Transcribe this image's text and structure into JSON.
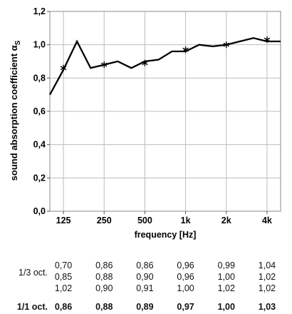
{
  "chart_data": {
    "type": "line",
    "ylabel": "sound absorption coefficient α",
    "ylabel_subscript": "S",
    "xlabel": "frequency [Hz]",
    "x_tick_labels": [
      "125",
      "250",
      "500",
      "1k",
      "2k",
      "4k"
    ],
    "y_tick_labels": [
      "0,0",
      "0,2",
      "0,4",
      "0,6",
      "0,8",
      "1,0",
      "1,2"
    ],
    "ylim": [
      0,
      1.2
    ],
    "grid": true,
    "x_third_octave": [
      "100",
      "125",
      "160",
      "200",
      "250",
      "315",
      "400",
      "500",
      "630",
      "800",
      "1k",
      "1.25k",
      "1.6k",
      "2k",
      "2.5k",
      "3.15k",
      "4k",
      "5k"
    ],
    "series": [
      {
        "values": [
          0.7,
          0.85,
          1.02,
          0.86,
          0.88,
          0.9,
          0.86,
          0.9,
          0.91,
          0.96,
          0.96,
          1.0,
          0.99,
          1.0,
          1.02,
          1.04,
          1.02,
          1.02
        ],
        "markers": [
          {
            "x": "125",
            "y": 0.86
          },
          {
            "x": "250",
            "y": 0.88
          },
          {
            "x": "500",
            "y": 0.89
          },
          {
            "x": "1k",
            "y": 0.97
          },
          {
            "x": "2k",
            "y": 1.0
          },
          {
            "x": "4k",
            "y": 1.03
          }
        ]
      }
    ]
  },
  "table": {
    "third_label": "1/3 oct.",
    "octave_label": "1/1 oct.",
    "third_values": [
      [
        "0,70",
        "0,85",
        "1,02"
      ],
      [
        "0,86",
        "0,88",
        "0,90"
      ],
      [
        "0,86",
        "0,90",
        "0,91"
      ],
      [
        "0,96",
        "0,96",
        "1,00"
      ],
      [
        "0,99",
        "1,00",
        "1,02"
      ],
      [
        "1,04",
        "1,02",
        "1,02"
      ]
    ],
    "octave_values": [
      "0,86",
      "0,88",
      "0,89",
      "0,97",
      "1,00",
      "1,03"
    ]
  }
}
